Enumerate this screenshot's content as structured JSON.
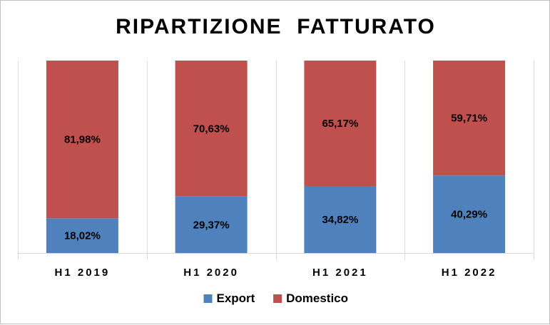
{
  "chart_data": {
    "type": "bar",
    "stacked": true,
    "title": "RIPARTIZIONE  FATTURATO",
    "xlabel": "",
    "ylabel": "",
    "ylim": [
      0,
      100
    ],
    "categories": [
      "H1 2019",
      "H1 2020",
      "H1 2021",
      "H1 2022"
    ],
    "series": [
      {
        "name": "Export",
        "color": "#4f81bd",
        "values": [
          18.02,
          29.37,
          34.82,
          40.29
        ],
        "labels": [
          "18,02%",
          "29,37%",
          "34,82%",
          "40,29%"
        ]
      },
      {
        "name": "Domestico",
        "color": "#c0504d",
        "values": [
          81.98,
          70.63,
          65.17,
          59.71
        ],
        "labels": [
          "81,98%",
          "70,63%",
          "65,17%",
          "59,71%"
        ]
      }
    ],
    "grid": {
      "vertical_separators": true,
      "color": "#d9d9d9"
    },
    "legend": {
      "position": "bottom"
    }
  }
}
